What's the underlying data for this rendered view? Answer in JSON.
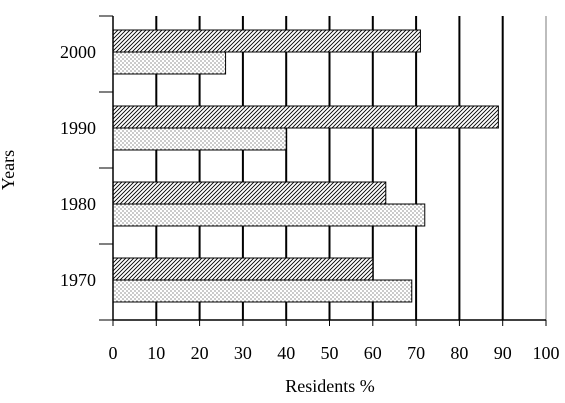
{
  "chart_data": {
    "type": "bar",
    "orientation": "horizontal",
    "title": "",
    "xlabel": "Residents %",
    "ylabel": "Years",
    "xlim": [
      0,
      100
    ],
    "x_ticks": [
      "0",
      "10",
      "20",
      "30",
      "40",
      "50",
      "60",
      "70",
      "80",
      "90",
      "100"
    ],
    "categories": [
      "2000",
      "1990",
      "1980",
      "1970"
    ],
    "series": [
      {
        "pattern": "diagonal-hatch",
        "values": [
          71,
          89,
          63,
          60
        ]
      },
      {
        "pattern": "dotted",
        "values": [
          26,
          40,
          72,
          69
        ]
      }
    ],
    "grid": true,
    "legend": "none"
  }
}
